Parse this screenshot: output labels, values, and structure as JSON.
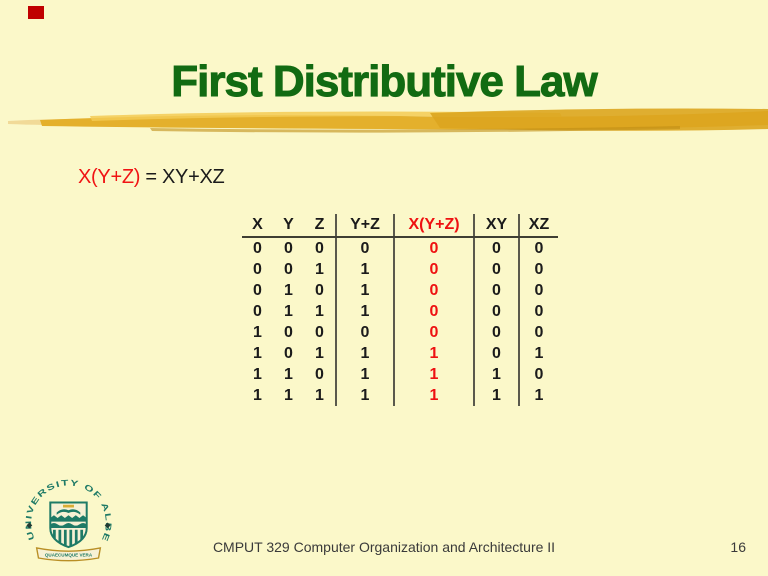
{
  "slide": {
    "title": "First Distributive Law",
    "formula": {
      "lhs": "X(Y+Z)",
      "eq": " = XY+XZ"
    },
    "footer": {
      "course": "CMPUT 329 Computer Organization and Architecture II",
      "page_number": "16"
    },
    "logo": {
      "arc_text": "UNIVERSITY OF ALBERTA",
      "motto": "QUAECUMQUE VERA"
    },
    "colors": {
      "background": "#FBF8C9",
      "title_green": "#126B12",
      "formula_red": "#F01414",
      "table_highlight_red": "#EE1111",
      "bullet_red": "#C00000",
      "brush_gold": "#E4B02C",
      "footer_text": "#3A3A3A",
      "logo_teal": "#1E7A66"
    }
  },
  "table": {
    "columns": [
      {
        "label": "X",
        "highlight": false
      },
      {
        "label": "Y",
        "highlight": false
      },
      {
        "label": "Z",
        "highlight": false
      },
      {
        "label": "Y+Z",
        "highlight": false
      },
      {
        "label": "X(Y+Z)",
        "highlight": true
      },
      {
        "label": "XY",
        "highlight": false
      },
      {
        "label": "XZ",
        "highlight": false
      }
    ],
    "rows": [
      [
        "0",
        "0",
        "0",
        "0",
        "0",
        "0",
        "0"
      ],
      [
        "0",
        "0",
        "1",
        "1",
        "0",
        "0",
        "0"
      ],
      [
        "0",
        "1",
        "0",
        "1",
        "0",
        "0",
        "0"
      ],
      [
        "0",
        "1",
        "1",
        "1",
        "0",
        "0",
        "0"
      ],
      [
        "1",
        "0",
        "0",
        "0",
        "0",
        "0",
        "0"
      ],
      [
        "1",
        "0",
        "1",
        "1",
        "1",
        "0",
        "1"
      ],
      [
        "1",
        "1",
        "0",
        "1",
        "1",
        "1",
        "0"
      ],
      [
        "1",
        "1",
        "1",
        "1",
        "1",
        "1",
        "1"
      ]
    ]
  }
}
